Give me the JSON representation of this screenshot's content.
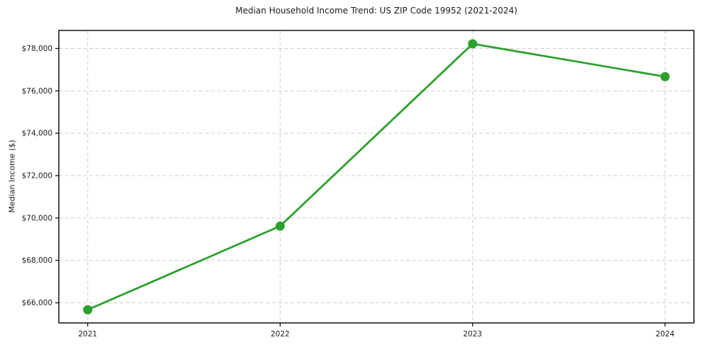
{
  "title": "Median Household Income Trend: US ZIP Code 19952 (2021-2024)",
  "chart_data": {
    "type": "line",
    "title": "Median Household Income Trend: US ZIP Code 19952 (2021-2024)",
    "xlabel": "",
    "ylabel": "Median Income ($)",
    "x": [
      2021,
      2022,
      2023,
      2024
    ],
    "x_tick_labels": [
      "2021",
      "2022",
      "2023",
      "2024"
    ],
    "series": [
      {
        "name": "Median Household Income",
        "values": [
          65670,
          69620,
          78220,
          76670
        ]
      }
    ],
    "y_ticks": [
      66000,
      68000,
      70000,
      72000,
      74000,
      76000,
      78000
    ],
    "y_tick_labels": [
      "$66,000",
      "$68,000",
      "$70,000",
      "$72,000",
      "$74,000",
      "$76,000",
      "$78,000"
    ],
    "xlim": [
      2020.85,
      2024.15
    ],
    "ylim": [
      65050,
      78850
    ],
    "grid": true,
    "grid_style": "dashed",
    "legend": null,
    "marker": "circle",
    "colors": {
      "line": "#2ca02c",
      "marker": "#2ca02c",
      "grid": "#cccccc",
      "axis": "#000000",
      "text": "#1a1a1a",
      "background": "#ffffff"
    }
  }
}
